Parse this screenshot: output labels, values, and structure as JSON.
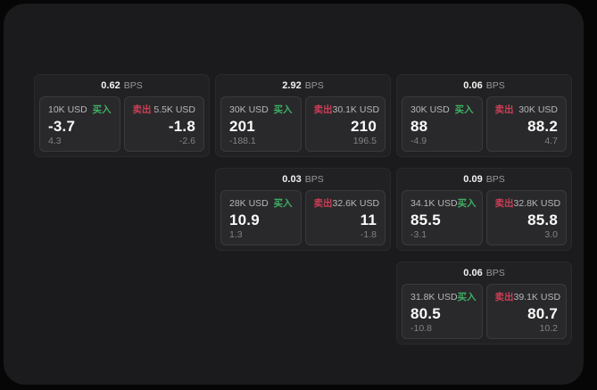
{
  "labels": {
    "buy": "买入",
    "sell": "卖出",
    "bps_unit": "BPS"
  },
  "colors": {
    "buy_accent": "#3faf63",
    "sell_accent": "#cc3e56",
    "panel_background": "#1b1b1d",
    "card_background": "#212123",
    "tile_background": "#29292b"
  },
  "cards": [
    {
      "bps": "0.62",
      "buy": {
        "amount": "10K USD",
        "value": "-3.7",
        "delta": "4.3"
      },
      "sell": {
        "amount": "5.5K USD",
        "value": "-1.8",
        "delta": "-2.6"
      }
    },
    {
      "bps": "2.92",
      "buy": {
        "amount": "30K USD",
        "value": "201",
        "delta": "-188.1"
      },
      "sell": {
        "amount": "30.1K USD",
        "value": "210",
        "delta": "196.5"
      }
    },
    {
      "bps": "0.06",
      "buy": {
        "amount": "30K USD",
        "value": "88",
        "delta": "-4.9"
      },
      "sell": {
        "amount": "30K USD",
        "value": "88.2",
        "delta": "4.7"
      }
    },
    {
      "bps": "0.03",
      "buy": {
        "amount": "28K USD",
        "value": "10.9",
        "delta": "1.3"
      },
      "sell": {
        "amount": "32.6K USD",
        "value": "11",
        "delta": "-1.8"
      }
    },
    {
      "bps": "0.09",
      "buy": {
        "amount": "34.1K USD",
        "value": "85.5",
        "delta": "-3.1"
      },
      "sell": {
        "amount": "32.8K USD",
        "value": "85.8",
        "delta": "3.0"
      }
    },
    {
      "bps": "0.06",
      "buy": {
        "amount": "31.8K USD",
        "value": "80.5",
        "delta": "-10.8"
      },
      "sell": {
        "amount": "39.1K USD",
        "value": "80.7",
        "delta": "10.2"
      }
    }
  ]
}
